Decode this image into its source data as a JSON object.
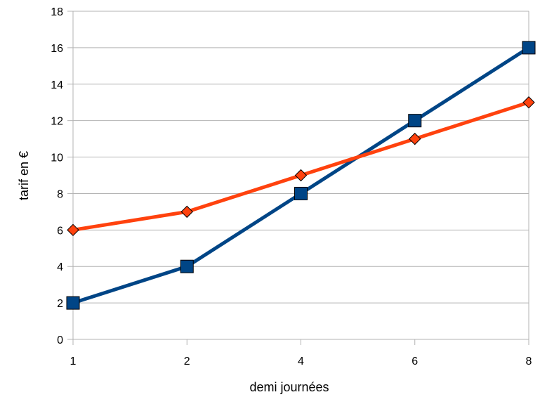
{
  "chart_data": {
    "type": "line",
    "title": "",
    "xlabel": "demi journées",
    "ylabel": "tarif en €",
    "categories": [
      "1",
      "2",
      "4",
      "6",
      "8"
    ],
    "ylim": [
      0,
      18
    ],
    "yticks": [
      0,
      2,
      4,
      6,
      8,
      10,
      12,
      14,
      16,
      18
    ],
    "grid": "horizontal",
    "legend": "none",
    "series": [
      {
        "values": [
          2,
          4,
          8,
          12,
          16
        ],
        "color": "#004586",
        "marker": "square"
      },
      {
        "values": [
          6,
          7,
          9,
          11,
          13
        ],
        "color": "#ff420e",
        "marker": "diamond"
      }
    ]
  }
}
